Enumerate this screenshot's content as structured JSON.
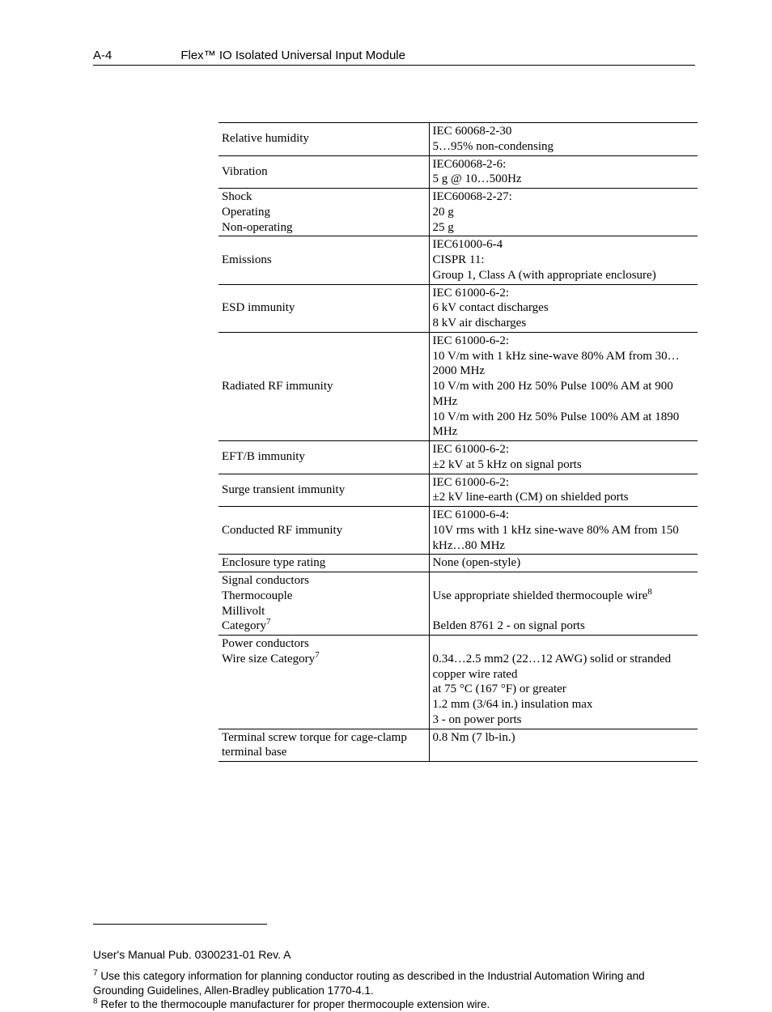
{
  "header": {
    "page_number": "A-4",
    "title": "Flex™ IO Isolated Universal Input Module"
  },
  "table": {
    "rows": [
      {
        "left_lines": [
          "Relative humidity"
        ],
        "right_lines": [
          "IEC 60068-2-30",
          "5…95% non-condensing"
        ]
      },
      {
        "left_lines": [
          "Vibration"
        ],
        "right_lines": [
          "IEC60068-2-6:",
          "5 g @ 10…500Hz"
        ]
      },
      {
        "left_lines": [
          "Shock",
          "Operating",
          "Non-operating"
        ],
        "right_lines": [
          "IEC60068-2-27:",
          "20 g",
          "25 g"
        ]
      },
      {
        "left_lines": [
          "Emissions"
        ],
        "right_lines": [
          "IEC61000-6-4",
          "CISPR 11:",
          "Group 1, Class A (with appropriate enclosure)"
        ]
      },
      {
        "left_lines": [
          "ESD immunity"
        ],
        "right_lines": [
          "IEC 61000-6-2:",
          "6 kV contact discharges",
          "8 kV air discharges"
        ]
      },
      {
        "left_lines": [
          "Radiated RF immunity"
        ],
        "right_lines": [
          "IEC 61000-6-2:",
          "10 V/m with 1 kHz sine-wave 80% AM from 30…2000 MHz",
          "10 V/m with 200 Hz 50% Pulse 100% AM at 900 MHz",
          "10 V/m with 200 Hz 50% Pulse 100% AM at 1890 MHz"
        ]
      },
      {
        "left_lines": [
          "EFT/B immunity"
        ],
        "right_lines": [
          "IEC 61000-6-2:",
          "±2 kV at 5 kHz on signal ports"
        ]
      },
      {
        "left_lines": [
          "Surge transient immunity"
        ],
        "right_lines": [
          "IEC 61000-6-2:",
          "±2 kV line-earth (CM) on shielded ports"
        ]
      },
      {
        "left_lines": [
          "Conducted RF immunity"
        ],
        "right_lines": [
          "IEC 61000-6-4:",
          "10V rms with 1 kHz sine-wave 80% AM from 150 kHz…80 MHz"
        ]
      },
      {
        "left_lines": [
          "Enclosure type rating"
        ],
        "right_lines": [
          "None (open-style)"
        ]
      },
      {
        "left_html": "Signal conductors<br>Thermocouple<br>Millivolt<br>Category<span class=\"super\">7</span>",
        "right_html": "<br>Use appropriate shielded thermocouple wire<span class=\"super\">8</span><br><br>Belden 8761 2 - on signal ports"
      },
      {
        "left_html": "Power conductors<br>Wire size Category<span class=\"super\">7</span>",
        "right_html": "<br>0.34…2.5 mm2 (22…12 AWG) solid or stranded copper wire rated<br>at 75 °C (167 °F) or greater<br>1.2 mm (3/64 in.) insulation max<br>3 - on power ports"
      },
      {
        "left_lines": [
          "Terminal screw torque for cage-clamp terminal base"
        ],
        "right_lines": [
          "0.8 Nm (7 lb-in.)"
        ]
      }
    ]
  },
  "footnotes": {
    "fn7_marker": "7",
    "fn7_text": " Use this category information for planning conductor routing as described in the Industrial Automation Wiring and Grounding Guidelines, Allen-Bradley publication 1770-4.1.",
    "fn8_marker": "8",
    "fn8_text": " Refer to the thermocouple manufacturer for proper thermocouple extension wire."
  },
  "footer": {
    "text": "User's Manual Pub. 0300231-01 Rev. A"
  }
}
